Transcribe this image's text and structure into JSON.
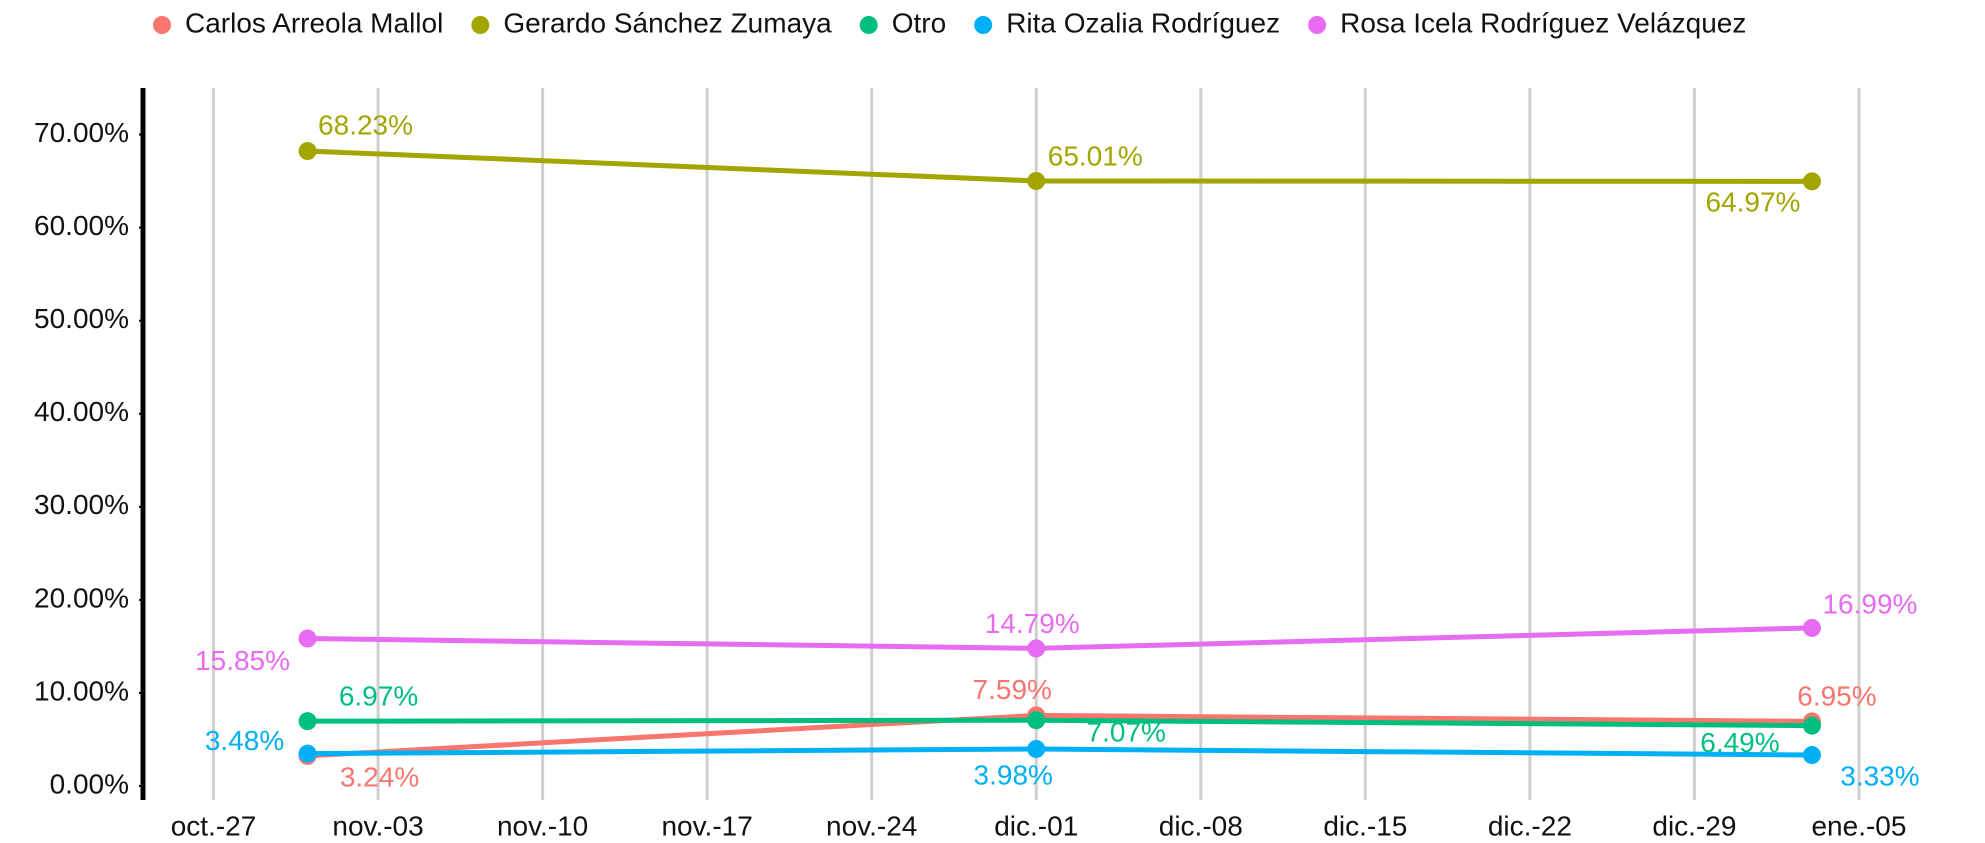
{
  "chart_data": {
    "type": "line",
    "x": [
      "10-31",
      "12-01",
      "01-03"
    ],
    "series": [
      {
        "name": "Carlos Arreola Mallol",
        "color": "#F8766D",
        "values": [
          3.24,
          7.59,
          6.95
        ],
        "value_labels": [
          "3.24%",
          "7.59%",
          "6.95%"
        ]
      },
      {
        "name": "Gerardo Sánchez Zumaya",
        "color": "#A3A500",
        "values": [
          68.23,
          65.01,
          64.97
        ],
        "value_labels": [
          "68.23%",
          "65.01%",
          "64.97%"
        ]
      },
      {
        "name": "Otro",
        "color": "#00BF7D",
        "values": [
          6.97,
          7.07,
          6.49
        ],
        "value_labels": [
          "6.97%",
          "7.07%",
          "6.49%"
        ]
      },
      {
        "name": "Rita Ozalia Rodríguez",
        "color": "#00B0F6",
        "values": [
          3.48,
          3.98,
          3.33
        ],
        "value_labels": [
          "3.48%",
          "3.98%",
          "3.33%"
        ]
      },
      {
        "name": "Rosa Icela Rodríguez Velázquez",
        "color": "#E76BF3",
        "values": [
          15.85,
          14.79,
          16.99
        ],
        "value_labels": [
          "15.85%",
          "14.79%",
          "16.99%"
        ]
      }
    ],
    "xlim": [
      "10-24",
      "01-09"
    ],
    "xticks": [
      {
        "value": "10-27",
        "label": "oct.-27"
      },
      {
        "value": "11-03",
        "label": "nov.-03"
      },
      {
        "value": "11-10",
        "label": "nov.-10"
      },
      {
        "value": "11-17",
        "label": "nov.-17"
      },
      {
        "value": "11-24",
        "label": "nov.-24"
      },
      {
        "value": "12-01",
        "label": "dic.-01"
      },
      {
        "value": "12-08",
        "label": "dic.-08"
      },
      {
        "value": "12-15",
        "label": "dic.-15"
      },
      {
        "value": "12-22",
        "label": "dic.-22"
      },
      {
        "value": "12-29",
        "label": "dic.-29"
      },
      {
        "value": "01-05",
        "label": "ene.-05"
      }
    ],
    "ylim": [
      -1.5,
      75
    ],
    "yticks": [
      {
        "value": 0,
        "label": "0.00%"
      },
      {
        "value": 10,
        "label": "10.00%"
      },
      {
        "value": 20,
        "label": "20.00%"
      },
      {
        "value": 30,
        "label": "30.00%"
      },
      {
        "value": 40,
        "label": "40.00%"
      },
      {
        "value": 50,
        "label": "50.00%"
      },
      {
        "value": 60,
        "label": "60.00%"
      },
      {
        "value": 70,
        "label": "70.00%"
      }
    ],
    "grid": "x",
    "legend": "top"
  }
}
